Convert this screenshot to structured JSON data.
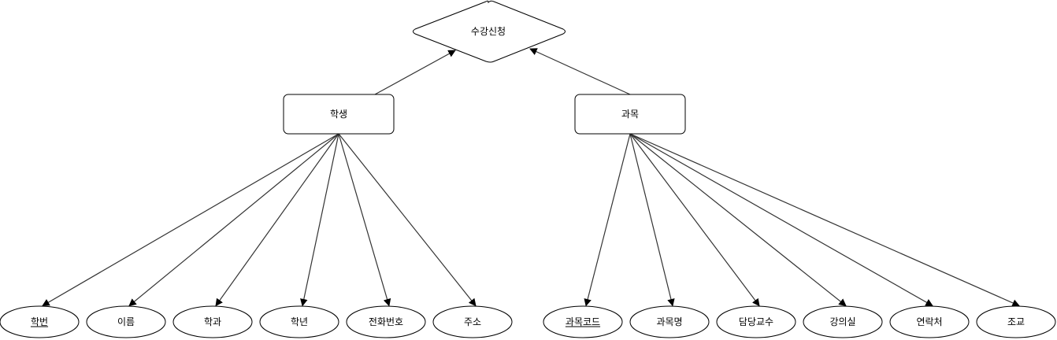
{
  "diagram": {
    "relationship": {
      "label": "수강신청"
    },
    "entities": {
      "student": {
        "label": "학생"
      },
      "course": {
        "label": "과목"
      }
    },
    "attributes": {
      "student": [
        {
          "label": "학번",
          "key": true
        },
        {
          "label": "이름",
          "key": false
        },
        {
          "label": "학과",
          "key": false
        },
        {
          "label": "학년",
          "key": false
        },
        {
          "label": "전화번호",
          "key": false
        },
        {
          "label": "주소",
          "key": false
        }
      ],
      "course": [
        {
          "label": "과목코드",
          "key": true
        },
        {
          "label": "과목명",
          "key": false
        },
        {
          "label": "담당교수",
          "key": false
        },
        {
          "label": "강의실",
          "key": false
        },
        {
          "label": "연락처",
          "key": false
        },
        {
          "label": "조교",
          "key": false
        }
      ]
    }
  }
}
